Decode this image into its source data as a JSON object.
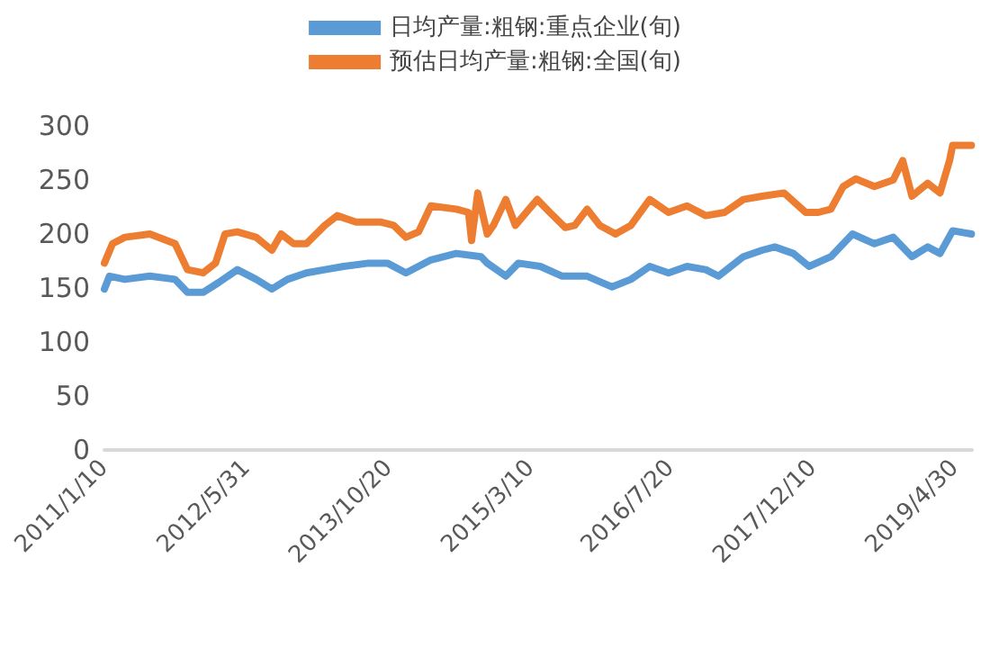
{
  "chart_data": {
    "type": "line",
    "xlim": [
      "2011-01-10",
      "2019-06-30"
    ],
    "xticks": [
      {
        "value": "2011-01-10",
        "label": "2011/1/10"
      },
      {
        "value": "2012-05-31",
        "label": "2012/5/31"
      },
      {
        "value": "2013-10-20",
        "label": "2013/10/20"
      },
      {
        "value": "2015-03-10",
        "label": "2015/3/10"
      },
      {
        "value": "2016-07-20",
        "label": "2016/7/20"
      },
      {
        "value": "2017-12-10",
        "label": "2017/12/10"
      },
      {
        "value": "2019-04-30",
        "label": "2019/4/30"
      }
    ],
    "ylim": [
      0,
      300
    ],
    "yticks": [
      0,
      50,
      100,
      150,
      200,
      250,
      300
    ],
    "grid": false,
    "legend": "top",
    "marker": "none",
    "line_style": "solid",
    "series": [
      {
        "name": "日均产量:粗钢:重点企业(旬)",
        "color": "#5b9bd5",
        "x": [
          "2011-01-10",
          "2011-01-28",
          "2011-03-24",
          "2011-06-21",
          "2011-09-19",
          "2011-11-02",
          "2011-12-28",
          "2012-02-21",
          "2012-04-28",
          "2012-07-04",
          "2012-08-29",
          "2012-10-24",
          "2012-12-30",
          "2013-03-06",
          "2013-05-12",
          "2013-08-09",
          "2013-10-15",
          "2013-12-20",
          "2014-03-19",
          "2014-06-17",
          "2014-09-14",
          "2014-10-06",
          "2014-12-11",
          "2015-01-25",
          "2015-04-13",
          "2015-06-30",
          "2015-09-27",
          "2015-12-25",
          "2016-03-01",
          "2016-05-07",
          "2016-07-13",
          "2016-09-17",
          "2016-11-23",
          "2017-01-07",
          "2017-04-06",
          "2017-06-12",
          "2017-07-27",
          "2017-10-01",
          "2017-11-26",
          "2018-02-12",
          "2018-04-30",
          "2018-07-17",
          "2018-09-22",
          "2018-11-28",
          "2019-01-23",
          "2019-03-08",
          "2019-04-22",
          "2019-06-28"
        ],
        "values": [
          149,
          161,
          158,
          161,
          158,
          146,
          146,
          155,
          167,
          158,
          149,
          158,
          164,
          167,
          170,
          173,
          173,
          164,
          176,
          182,
          179,
          173,
          161,
          173,
          170,
          161,
          161,
          151,
          158,
          170,
          164,
          170,
          167,
          161,
          179,
          185,
          188,
          182,
          170,
          179,
          200,
          191,
          197,
          179,
          188,
          182,
          203,
          200
        ]
      },
      {
        "name": "预估日均产量:粗钢:全国(旬)",
        "color": "#ed7d31",
        "x": [
          "2011-01-10",
          "2011-02-08",
          "2011-03-24",
          "2011-06-21",
          "2011-09-19",
          "2011-11-02",
          "2011-12-28",
          "2012-02-10",
          "2012-03-15",
          "2012-04-28",
          "2012-07-04",
          "2012-08-29",
          "2012-10-01",
          "2012-11-15",
          "2012-12-30",
          "2013-03-06",
          "2013-04-19",
          "2013-06-25",
          "2013-09-23",
          "2013-11-06",
          "2013-12-20",
          "2014-02-03",
          "2014-03-19",
          "2014-06-17",
          "2014-07-31",
          "2014-08-11",
          "2014-09-02",
          "2014-10-06",
          "2014-10-28",
          "2014-12-11",
          "2015-01-14",
          "2015-04-02",
          "2015-05-17",
          "2015-07-11",
          "2015-08-14",
          "2015-09-27",
          "2015-11-11",
          "2016-01-06",
          "2016-03-01",
          "2016-05-07",
          "2016-07-13",
          "2016-09-17",
          "2016-11-23",
          "2017-01-29",
          "2017-04-06",
          "2017-06-12",
          "2017-08-29",
          "2017-11-14",
          "2017-12-29",
          "2018-02-12",
          "2018-03-28",
          "2018-05-12",
          "2018-07-17",
          "2018-09-22",
          "2018-10-26",
          "2018-11-28",
          "2019-01-23",
          "2019-03-08",
          "2019-04-11",
          "2019-04-22",
          "2019-06-28"
        ],
        "values": [
          173,
          191,
          197,
          200,
          191,
          167,
          164,
          173,
          200,
          202,
          197,
          185,
          200,
          191,
          191,
          208,
          217,
          211,
          211,
          208,
          197,
          202,
          226,
          223,
          220,
          194,
          238,
          200,
          208,
          232,
          208,
          232,
          220,
          206,
          208,
          223,
          208,
          200,
          208,
          232,
          220,
          226,
          217,
          220,
          232,
          235,
          238,
          220,
          220,
          223,
          244,
          251,
          244,
          250,
          268,
          235,
          247,
          238,
          268,
          282,
          282
        ]
      }
    ]
  }
}
